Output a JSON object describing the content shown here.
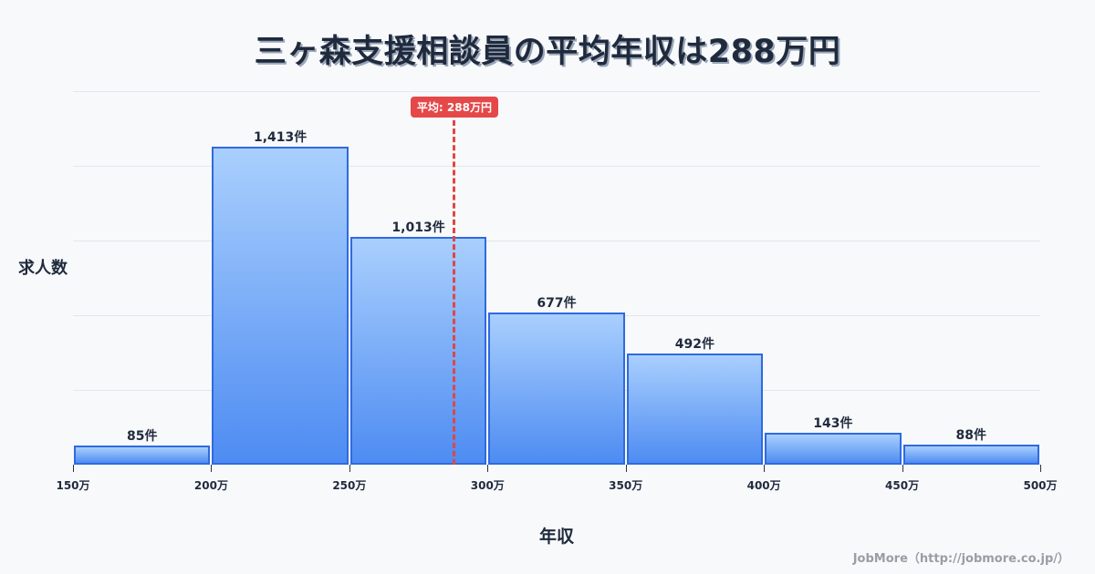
{
  "title": "三ヶ森支援相談員の平均年収は288万円",
  "credit": "JobMore（http://jobmore.co.jp/）",
  "mean_badge": "平均: 288万円",
  "colors": {
    "bar_fill_top": "#a9cffd",
    "bar_fill_bottom": "#4e8cf2",
    "bar_border": "#2f6ae0",
    "mean_line": "#e04646",
    "title": "#1f2a3c"
  },
  "chart_data": {
    "type": "bar",
    "title": "三ヶ森支援相談員の平均年収は288万円",
    "xlabel": "年収",
    "ylabel": "求人数",
    "categories": [
      "150-200万",
      "200-250万",
      "250-300万",
      "300-350万",
      "350-400万",
      "400-450万",
      "450-500万"
    ],
    "bin_edges": [
      150,
      200,
      250,
      300,
      350,
      400,
      450,
      500
    ],
    "values": [
      85,
      1413,
      1013,
      677,
      492,
      143,
      88
    ],
    "value_labels": [
      "85件",
      "1,413件",
      "1,013件",
      "677件",
      "492件",
      "143件",
      "88件"
    ],
    "x_tick_labels": [
      "150万",
      "200万",
      "250万",
      "300万",
      "350万",
      "400万",
      "450万",
      "500万"
    ],
    "mean": 288,
    "mean_label": "平均: 288万円",
    "xlim": [
      150,
      500
    ],
    "ylim": [
      0,
      1660
    ],
    "grid": true,
    "legend": null
  }
}
